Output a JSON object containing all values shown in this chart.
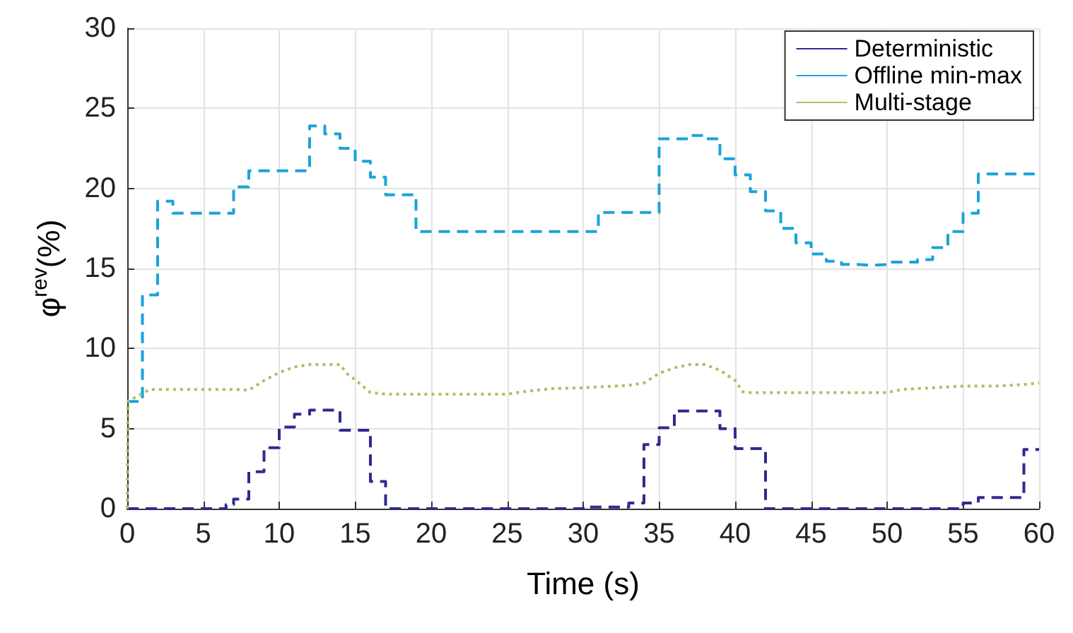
{
  "chart_data": {
    "type": "step",
    "xlabel": "Time (s)",
    "ylabel": "φ$^{rev}$(%)",
    "xlim": [
      0,
      60
    ],
    "ylim": [
      0,
      30
    ],
    "xticks": [
      0,
      5,
      10,
      15,
      20,
      25,
      30,
      35,
      40,
      45,
      50,
      55,
      60
    ],
    "yticks": [
      0,
      5,
      10,
      15,
      20,
      25,
      30
    ],
    "grid": true,
    "legend": "top right",
    "marker": "none",
    "series": [
      {
        "name": "Deterministic",
        "color": "#2f2a8f",
        "line_style": "dashed",
        "x": [
          0,
          6.5,
          7,
          8,
          9,
          10,
          11,
          12,
          14,
          16,
          17,
          30,
          33,
          34,
          35,
          36,
          39,
          40,
          42,
          55,
          56,
          59,
          60
        ],
        "values": [
          0,
          0.25,
          0.6,
          2.3,
          3.8,
          5.1,
          5.9,
          6.15,
          4.9,
          1.7,
          0,
          0.1,
          0.35,
          4.0,
          5.05,
          6.1,
          5.0,
          3.75,
          0,
          0.35,
          0.7,
          3.7,
          3.7
        ]
      },
      {
        "name": "Offline min-max",
        "color": "#1aa3d9",
        "line_style": "dashed",
        "x": [
          0,
          1,
          2,
          3,
          7,
          8,
          12,
          13,
          14,
          15,
          16,
          17,
          19,
          31,
          35,
          37,
          38,
          39,
          40,
          41,
          42,
          43,
          44,
          45,
          46,
          47,
          48,
          49,
          50,
          52,
          53,
          54,
          55,
          56,
          58,
          60
        ],
        "values": [
          6.7,
          13.35,
          19.2,
          18.45,
          20.1,
          21.1,
          23.9,
          23.4,
          22.5,
          21.7,
          20.7,
          19.6,
          17.3,
          18.5,
          23.1,
          23.3,
          23.1,
          21.85,
          20.85,
          19.8,
          18.6,
          17.5,
          16.6,
          15.9,
          15.45,
          15.25,
          15.2,
          15.25,
          15.4,
          15.55,
          16.3,
          17.3,
          18.45,
          20.9,
          20.9,
          20.9
        ]
      },
      {
        "name": "Multi-stage",
        "color": "#a6c266",
        "line_style": "dotted",
        "type": "line",
        "x": [
          0,
          0.05,
          1,
          1.5,
          7,
          8,
          9,
          10,
          11,
          12,
          14,
          14.5,
          15,
          16,
          17,
          25,
          26,
          28,
          30,
          33,
          34,
          35,
          36,
          37,
          38,
          39,
          40,
          40.5,
          41,
          50,
          51,
          53,
          55,
          57,
          59,
          60
        ],
        "values": [
          0,
          6.7,
          7.2,
          7.45,
          7.45,
          7.4,
          8.0,
          8.5,
          8.85,
          9.0,
          9.0,
          8.4,
          8.05,
          7.25,
          7.15,
          7.15,
          7.3,
          7.5,
          7.55,
          7.7,
          7.85,
          8.45,
          8.8,
          9.0,
          9.0,
          8.65,
          8.0,
          7.3,
          7.25,
          7.25,
          7.45,
          7.55,
          7.65,
          7.65,
          7.75,
          7.85
        ]
      }
    ]
  }
}
